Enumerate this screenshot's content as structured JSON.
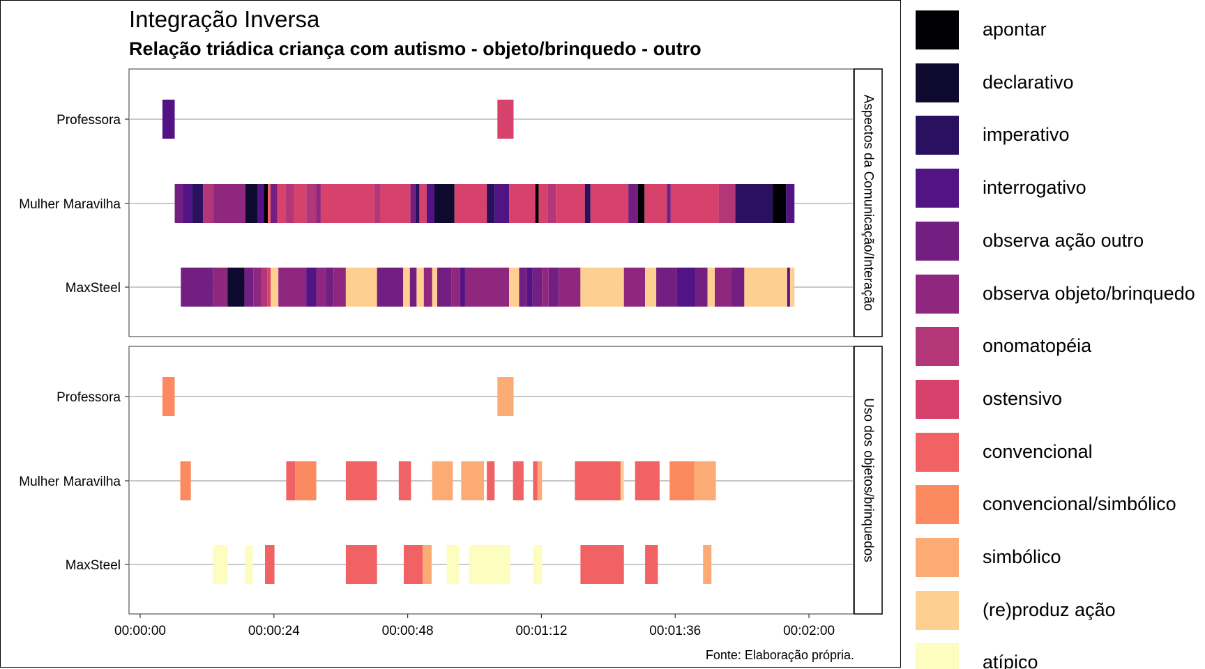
{
  "chart_data": {
    "type": "timeline",
    "title": "Integração Inversa",
    "subtitle": "Relação triádica criança com autismo - objeto/brinquedo - outro",
    "caption": "Fonte: Elaboração própria.",
    "x_unit": "seconds",
    "xlim": [
      -2,
      128
    ],
    "x_ticks": [
      {
        "value": 0,
        "label": "00:00:00"
      },
      {
        "value": 24,
        "label": "00:00:24"
      },
      {
        "value": 48,
        "label": "00:00:48"
      },
      {
        "value": 72,
        "label": "00:01:12"
      },
      {
        "value": 96,
        "label": "00:01:36"
      },
      {
        "value": 120,
        "label": "00:02:00"
      }
    ],
    "participants": [
      "Professora",
      "Mulher Maravilha",
      "MaxSteel"
    ],
    "panels": [
      {
        "name": "Aspectos da Comunicação/Interação",
        "rows": [
          {
            "label": "Professora",
            "segments": [
              {
                "start": 4.0,
                "end": 6.2,
                "category": "interrogativo"
              },
              {
                "start": 64.1,
                "end": 67.0,
                "category": "ostensivo"
              }
            ]
          },
          {
            "label": "Mulher Maravilha",
            "segments": [
              {
                "start": 6.2,
                "end": 7.7,
                "category": "observa ação outro"
              },
              {
                "start": 7.7,
                "end": 9.3,
                "category": "interrogativo"
              },
              {
                "start": 9.3,
                "end": 11.3,
                "category": "imperativo"
              },
              {
                "start": 11.3,
                "end": 13.2,
                "category": "onomatopéia"
              },
              {
                "start": 13.2,
                "end": 18.9,
                "category": "observa objeto/brinquedo"
              },
              {
                "start": 18.9,
                "end": 21.1,
                "category": "declarativo"
              },
              {
                "start": 21.1,
                "end": 22.2,
                "category": "interrogativo"
              },
              {
                "start": 22.2,
                "end": 22.9,
                "category": "apontar"
              },
              {
                "start": 22.9,
                "end": 23.4,
                "category": "convencional"
              },
              {
                "start": 23.4,
                "end": 24.6,
                "category": "observa ação outro"
              },
              {
                "start": 24.6,
                "end": 26.1,
                "category": "ostensivo"
              },
              {
                "start": 26.1,
                "end": 27.6,
                "category": "onomatopéia"
              },
              {
                "start": 27.6,
                "end": 29.8,
                "category": "ostensivo"
              },
              {
                "start": 29.8,
                "end": 31.6,
                "category": "onomatopéia"
              },
              {
                "start": 31.6,
                "end": 32.4,
                "category": "observa objeto/brinquedo"
              },
              {
                "start": 32.4,
                "end": 42.0,
                "category": "ostensivo"
              },
              {
                "start": 42.0,
                "end": 43.1,
                "category": "onomatopéia"
              },
              {
                "start": 43.1,
                "end": 48.5,
                "category": "ostensivo"
              },
              {
                "start": 48.5,
                "end": 49.4,
                "category": "observa ação outro"
              },
              {
                "start": 49.4,
                "end": 50.1,
                "category": "imperativo"
              },
              {
                "start": 50.1,
                "end": 51.4,
                "category": "ostensivo"
              },
              {
                "start": 51.4,
                "end": 52.8,
                "category": "interrogativo"
              },
              {
                "start": 52.8,
                "end": 56.4,
                "category": "declarativo"
              },
              {
                "start": 56.4,
                "end": 62.2,
                "category": "ostensivo"
              },
              {
                "start": 62.2,
                "end": 63.6,
                "category": "imperativo"
              },
              {
                "start": 63.6,
                "end": 66.2,
                "category": "interrogativo"
              },
              {
                "start": 66.2,
                "end": 70.9,
                "category": "ostensivo"
              },
              {
                "start": 70.9,
                "end": 71.5,
                "category": "apontar"
              },
              {
                "start": 71.5,
                "end": 73.1,
                "category": "ostensivo"
              },
              {
                "start": 73.1,
                "end": 74.6,
                "category": "onomatopéia"
              },
              {
                "start": 74.6,
                "end": 79.8,
                "category": "ostensivo"
              },
              {
                "start": 79.8,
                "end": 80.8,
                "category": "imperativo"
              },
              {
                "start": 80.8,
                "end": 87.6,
                "category": "ostensivo"
              },
              {
                "start": 87.6,
                "end": 89.3,
                "category": "observa ação outro"
              },
              {
                "start": 89.3,
                "end": 90.5,
                "category": "apontar"
              },
              {
                "start": 90.5,
                "end": 94.5,
                "category": "ostensivo"
              },
              {
                "start": 94.5,
                "end": 95.2,
                "category": "observa ação outro"
              },
              {
                "start": 95.2,
                "end": 103.8,
                "category": "ostensivo"
              },
              {
                "start": 103.8,
                "end": 106.8,
                "category": "onomatopéia"
              },
              {
                "start": 106.8,
                "end": 113.5,
                "category": "imperativo"
              },
              {
                "start": 113.5,
                "end": 115.9,
                "category": "apontar"
              },
              {
                "start": 115.9,
                "end": 117.4,
                "category": "interrogativo"
              }
            ]
          },
          {
            "label": "MaxSteel",
            "segments": [
              {
                "start": 7.3,
                "end": 13.1,
                "category": "observa ação outro"
              },
              {
                "start": 13.1,
                "end": 15.7,
                "category": "observa objeto/brinquedo"
              },
              {
                "start": 15.7,
                "end": 18.7,
                "category": "declarativo"
              },
              {
                "start": 18.7,
                "end": 20.3,
                "category": "observa ação outro"
              },
              {
                "start": 20.3,
                "end": 21.8,
                "category": "observa objeto/brinquedo"
              },
              {
                "start": 21.8,
                "end": 22.8,
                "category": "onomatopéia"
              },
              {
                "start": 22.8,
                "end": 23.4,
                "category": "ostensivo"
              },
              {
                "start": 23.4,
                "end": 24.8,
                "category": "(re)produz ação"
              },
              {
                "start": 24.8,
                "end": 29.8,
                "category": "observa objeto/brinquedo"
              },
              {
                "start": 29.8,
                "end": 31.6,
                "category": "interrogativo"
              },
              {
                "start": 31.6,
                "end": 33.3,
                "category": "observa objeto/brinquedo"
              },
              {
                "start": 33.3,
                "end": 34.7,
                "category": "observa ação outro"
              },
              {
                "start": 34.7,
                "end": 36.9,
                "category": "observa objeto/brinquedo"
              },
              {
                "start": 36.9,
                "end": 42.5,
                "category": "(re)produz ação"
              },
              {
                "start": 42.5,
                "end": 47.2,
                "category": "observa ação outro"
              },
              {
                "start": 47.2,
                "end": 48.4,
                "category": "(re)produz ação"
              },
              {
                "start": 48.4,
                "end": 49.6,
                "category": "observa ação outro"
              },
              {
                "start": 49.6,
                "end": 50.9,
                "category": "(re)produz ação"
              },
              {
                "start": 50.9,
                "end": 52.4,
                "category": "observa objeto/brinquedo"
              },
              {
                "start": 52.4,
                "end": 53.3,
                "category": "(re)produz ação"
              },
              {
                "start": 53.3,
                "end": 55.9,
                "category": "observa ação outro"
              },
              {
                "start": 55.9,
                "end": 57.4,
                "category": "observa objeto/brinquedo"
              },
              {
                "start": 57.4,
                "end": 58.3,
                "category": "interrogativo"
              },
              {
                "start": 58.3,
                "end": 66.2,
                "category": "observa objeto/brinquedo"
              },
              {
                "start": 66.2,
                "end": 68.0,
                "category": "(re)produz ação"
              },
              {
                "start": 68.0,
                "end": 69.4,
                "category": "observa ação outro"
              },
              {
                "start": 69.4,
                "end": 70.4,
                "category": "interrogativo"
              },
              {
                "start": 70.4,
                "end": 72.1,
                "category": "observa ação outro"
              },
              {
                "start": 72.1,
                "end": 73.3,
                "category": "observa objeto/brinquedo"
              },
              {
                "start": 73.3,
                "end": 75.1,
                "category": "observa ação outro"
              },
              {
                "start": 75.1,
                "end": 79.0,
                "category": "observa objeto/brinquedo"
              },
              {
                "start": 79.0,
                "end": 86.8,
                "category": "(re)produz ação"
              },
              {
                "start": 86.8,
                "end": 90.6,
                "category": "observa objeto/brinquedo"
              },
              {
                "start": 90.6,
                "end": 92.6,
                "category": "(re)produz ação"
              },
              {
                "start": 92.6,
                "end": 96.3,
                "category": "observa ação outro"
              },
              {
                "start": 96.3,
                "end": 99.6,
                "category": "interrogativo"
              },
              {
                "start": 99.6,
                "end": 101.8,
                "category": "observa ação outro"
              },
              {
                "start": 101.8,
                "end": 103.1,
                "category": "(re)produz ação"
              },
              {
                "start": 103.1,
                "end": 106.1,
                "category": "observa objeto/brinquedo"
              },
              {
                "start": 106.1,
                "end": 108.4,
                "category": "observa ação outro"
              },
              {
                "start": 108.4,
                "end": 116.1,
                "category": "(re)produz ação"
              },
              {
                "start": 116.1,
                "end": 116.6,
                "category": "interrogativo"
              },
              {
                "start": 116.6,
                "end": 117.4,
                "category": "(re)produz ação"
              }
            ]
          }
        ]
      },
      {
        "name": "Uso dos objetos/brinquedos",
        "rows": [
          {
            "label": "Professora",
            "segments": [
              {
                "start": 4.0,
                "end": 6.2,
                "category": "convencional/simbólico"
              },
              {
                "start": 64.1,
                "end": 67.0,
                "category": "simbólico"
              }
            ]
          },
          {
            "label": "Mulher Maravilha",
            "segments": [
              {
                "start": 7.2,
                "end": 9.1,
                "category": "convencional/simbólico"
              },
              {
                "start": 26.2,
                "end": 27.8,
                "category": "convencional"
              },
              {
                "start": 27.8,
                "end": 31.6,
                "category": "convencional/simbólico"
              },
              {
                "start": 36.9,
                "end": 42.5,
                "category": "convencional"
              },
              {
                "start": 46.4,
                "end": 48.6,
                "category": "convencional"
              },
              {
                "start": 52.4,
                "end": 56.1,
                "category": "simbólico"
              },
              {
                "start": 57.6,
                "end": 61.7,
                "category": "simbólico"
              },
              {
                "start": 62.2,
                "end": 63.6,
                "category": "convencional"
              },
              {
                "start": 66.9,
                "end": 68.8,
                "category": "convencional"
              },
              {
                "start": 70.5,
                "end": 71.3,
                "category": "convencional"
              },
              {
                "start": 71.3,
                "end": 72.1,
                "category": "simbólico"
              },
              {
                "start": 78.0,
                "end": 86.2,
                "category": "convencional"
              },
              {
                "start": 86.2,
                "end": 86.8,
                "category": "(re)produz ação"
              },
              {
                "start": 88.8,
                "end": 93.2,
                "category": "convencional"
              },
              {
                "start": 95.0,
                "end": 99.4,
                "category": "convencional/simbólico"
              },
              {
                "start": 99.4,
                "end": 103.3,
                "category": "simbólico"
              }
            ]
          },
          {
            "label": "MaxSteel",
            "segments": [
              {
                "start": 13.1,
                "end": 15.7,
                "category": "atípico"
              },
              {
                "start": 18.8,
                "end": 20.2,
                "category": "atípico"
              },
              {
                "start": 22.4,
                "end": 24.1,
                "category": "convencional"
              },
              {
                "start": 36.9,
                "end": 42.5,
                "category": "convencional"
              },
              {
                "start": 47.3,
                "end": 50.7,
                "category": "convencional"
              },
              {
                "start": 50.7,
                "end": 52.3,
                "category": "simbólico"
              },
              {
                "start": 55.0,
                "end": 57.2,
                "category": "atípico"
              },
              {
                "start": 59.0,
                "end": 66.4,
                "category": "atípico"
              },
              {
                "start": 70.5,
                "end": 72.1,
                "category": "atípico"
              },
              {
                "start": 79.0,
                "end": 86.8,
                "category": "convencional"
              },
              {
                "start": 90.6,
                "end": 92.9,
                "category": "convencional"
              },
              {
                "start": 101.0,
                "end": 102.5,
                "category": "simbólico"
              }
            ]
          }
        ]
      }
    ]
  },
  "legend": [
    {
      "label": "apontar",
      "color": "#000004"
    },
    {
      "label": "declarativo",
      "color": "#0E0A2F"
    },
    {
      "label": "imperativo",
      "color": "#2A1160"
    },
    {
      "label": "interrogativo",
      "color": "#521384"
    },
    {
      "label": "observa ação outro",
      "color": "#731F81"
    },
    {
      "label": "observa objeto/brinquedo",
      "color": "#8F277F"
    },
    {
      "label": "onomatopéia",
      "color": "#B23678"
    },
    {
      "label": "ostensivo",
      "color": "#D7426D"
    },
    {
      "label": "convencional",
      "color": "#F06264"
    },
    {
      "label": "convencional/simbólico",
      "color": "#FB8A61"
    },
    {
      "label": "simbólico",
      "color": "#FDAB74"
    },
    {
      "label": "(re)produz ação",
      "color": "#FDD092"
    },
    {
      "label": "atípico",
      "color": "#FCFDBF"
    }
  ]
}
